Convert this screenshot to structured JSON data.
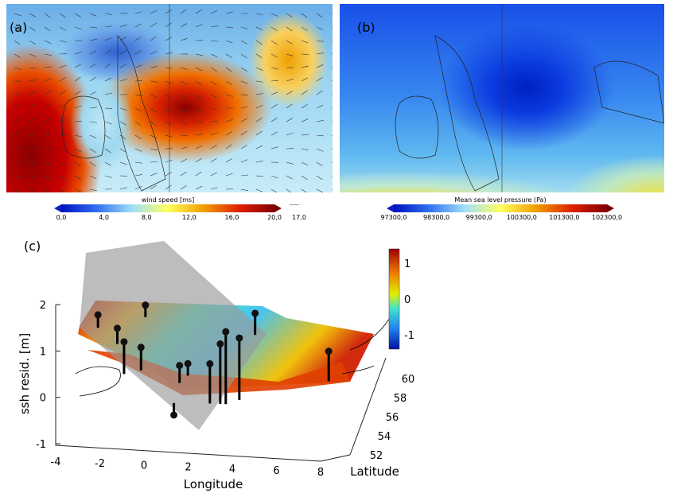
{
  "chart_data": [
    {
      "type": "heatmap",
      "panel_label": "(a)",
      "colorbar": {
        "title": "wind speed [ms]",
        "ticks": [
          "0,0",
          "4,0",
          "8,0",
          "12,0",
          "16,0",
          "20,0"
        ],
        "range": [
          0,
          20
        ]
      },
      "vector_legend": "17,0",
      "colors": {
        "low": "#0010c0",
        "mid": "#ffff60",
        "high": "#800000"
      }
    },
    {
      "type": "heatmap",
      "panel_label": "(b)",
      "colorbar": {
        "title": "Mean sea level pressure (Pa)",
        "ticks": [
          "97300,0",
          "98300,0",
          "99300,0",
          "100300,0",
          "101300,0",
          "102300,0"
        ],
        "range": [
          97300,
          102300
        ]
      }
    },
    {
      "type": "scatter",
      "panel_label": "(c)",
      "xlabel": "Longitude",
      "ylabel": "Latitude",
      "zlabel": "ssh resid. [m]",
      "xticks": [
        -4,
        -2,
        0,
        2,
        4,
        6,
        8
      ],
      "yticks": [
        52,
        54,
        56,
        58,
        60
      ],
      "zticks": [
        -1,
        0,
        1,
        2
      ],
      "colorbar": {
        "ticks": [
          1,
          0,
          -1
        ],
        "range": [
          -1.4,
          1.4
        ]
      },
      "stations": [
        {
          "lon": -2.95,
          "lat": 59.5,
          "ssh": 0.28
        },
        {
          "lon": -1.9,
          "lat": 57.9,
          "ssh": 0.34
        },
        {
          "lon": -1.26,
          "lat": 54.8,
          "ssh": 0.7
        },
        {
          "lon": -0.54,
          "lat": 55.25,
          "ssh": 0.5
        },
        {
          "lon": -0.94,
          "lat": 60.8,
          "ssh": 0.26
        },
        {
          "lon": 1.33,
          "lat": 54.1,
          "ssh": 0.38
        },
        {
          "lon": 1.62,
          "lat": 54.9,
          "ssh": 0.26
        },
        {
          "lon": 2.92,
          "lat": 52.1,
          "ssh": 0.86
        },
        {
          "lon": 3.39,
          "lat": 52.1,
          "ssh": 1.3
        },
        {
          "lon": 3.64,
          "lat": 52.1,
          "ssh": 1.57
        },
        {
          "lon": 4.2,
          "lat": 52.6,
          "ssh": 1.34
        },
        {
          "lon": 4.18,
          "lat": 59.4,
          "ssh": 0.47
        },
        {
          "lon": 8.0,
          "lat": 54.9,
          "ssh": 0.65
        },
        {
          "lon": 1.3,
          "lat": 52.0,
          "ssh": -0.26
        }
      ]
    }
  ]
}
